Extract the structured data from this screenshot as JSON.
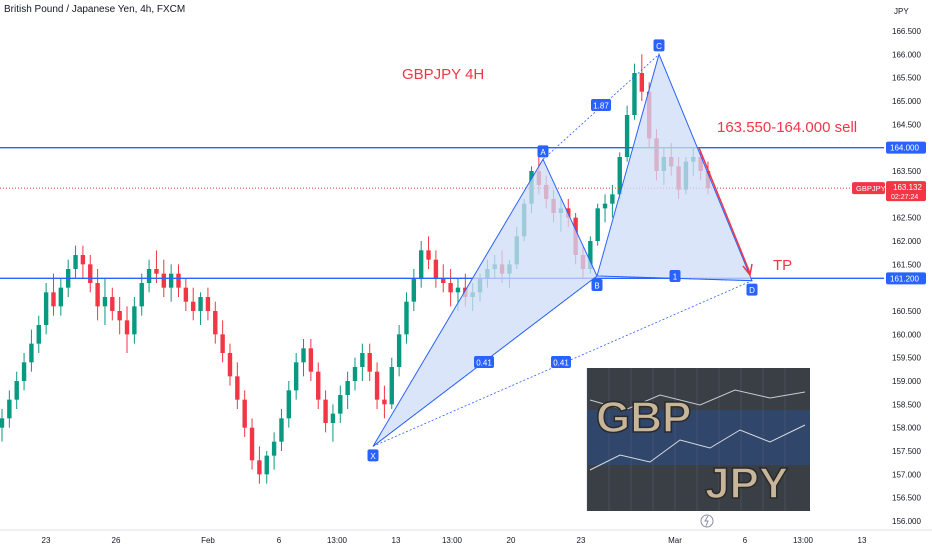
{
  "header": {
    "title": "British Pound / Japanese Yen, 4h, FXCM"
  },
  "annotations": {
    "chart_title": "GBPJPY 4H",
    "sell_zone": "163.550-164.000 sell",
    "tp": "TP",
    "pattern_points": [
      "X",
      "A",
      "B",
      "C",
      "D"
    ],
    "ratios": [
      "1.87",
      "0.41",
      "0.41",
      "1"
    ]
  },
  "price_scale": {
    "currency": "JPY",
    "last_price_tag": {
      "symbol": "GBPJPY",
      "price": "163.132",
      "countdown": "02:27:24"
    },
    "level_tags": [
      "164.000",
      "161.200"
    ]
  },
  "logo": {
    "top_text": "GBP",
    "bottom_text": "JPY"
  },
  "colors": {
    "bull": "#089981",
    "bear": "#f23645",
    "level_line": "#2962ff",
    "pattern_fill": "#cfdcf7",
    "pattern_stroke": "#2962ff",
    "annotation": "#f23645",
    "last_price": "#f23645"
  },
  "chart_data": {
    "type": "candlestick",
    "symbol": "GBPJPY",
    "timeframe": "4h",
    "ylim": [
      155.85,
      167.1
    ],
    "y_ticks": [
      156.0,
      156.5,
      157.0,
      157.5,
      158.0,
      158.5,
      159.0,
      159.5,
      160.0,
      160.5,
      161.0,
      161.5,
      162.0,
      162.5,
      163.0,
      163.5,
      164.0,
      164.5,
      165.0,
      165.5,
      166.0,
      166.5
    ],
    "x_ticks": [
      "23",
      "26",
      "Feb",
      "6",
      "13:00",
      "13",
      "13:00",
      "20",
      "23",
      "Mar",
      "6",
      "13:00",
      "13"
    ],
    "horizontal_levels": [
      164.0,
      161.2
    ],
    "last_price": 163.132,
    "pattern": {
      "name": "harmonic XABCD",
      "X": 157.6,
      "A": 163.75,
      "B": 161.25,
      "C": 166.0,
      "D": 161.15,
      "ratios": {
        "XB": "0.41",
        "AC": "1.87",
        "XD": "0.41",
        "BD": "1"
      }
    },
    "targets": {
      "sell_zone": [
        163.55,
        164.0
      ],
      "tp": 161.2
    },
    "candles": [
      [
        158.0,
        158.4,
        157.7,
        158.2
      ],
      [
        158.2,
        158.8,
        158.0,
        158.6
      ],
      [
        158.6,
        159.2,
        158.4,
        159.0
      ],
      [
        159.0,
        159.6,
        158.8,
        159.4
      ],
      [
        159.4,
        160.1,
        159.2,
        159.8
      ],
      [
        159.8,
        160.4,
        159.6,
        160.2
      ],
      [
        160.2,
        161.1,
        160.0,
        160.9
      ],
      [
        160.9,
        161.3,
        160.4,
        160.6
      ],
      [
        160.6,
        161.2,
        160.4,
        161.0
      ],
      [
        161.0,
        161.6,
        160.8,
        161.4
      ],
      [
        161.4,
        161.9,
        161.2,
        161.7
      ],
      [
        161.7,
        161.9,
        161.2,
        161.5
      ],
      [
        161.5,
        161.7,
        160.9,
        161.1
      ],
      [
        161.1,
        161.4,
        160.3,
        160.6
      ],
      [
        160.6,
        161.2,
        160.2,
        160.8
      ],
      [
        160.8,
        161.0,
        160.3,
        160.5
      ],
      [
        160.5,
        160.8,
        160.0,
        160.3
      ],
      [
        160.3,
        160.6,
        159.6,
        160.0
      ],
      [
        160.0,
        160.8,
        159.8,
        160.6
      ],
      [
        160.6,
        161.3,
        160.4,
        161.1
      ],
      [
        161.1,
        161.6,
        160.9,
        161.4
      ],
      [
        161.4,
        161.8,
        161.1,
        161.3
      ],
      [
        161.3,
        161.6,
        160.8,
        161.0
      ],
      [
        161.0,
        161.5,
        160.7,
        161.3
      ],
      [
        161.3,
        161.5,
        160.8,
        161.0
      ],
      [
        161.0,
        161.2,
        160.5,
        160.7
      ],
      [
        160.7,
        161.0,
        160.3,
        160.5
      ],
      [
        160.5,
        160.9,
        160.2,
        160.8
      ],
      [
        160.8,
        161.0,
        160.3,
        160.5
      ],
      [
        160.5,
        160.7,
        159.8,
        160.0
      ],
      [
        160.0,
        160.3,
        159.4,
        159.6
      ],
      [
        159.6,
        159.8,
        158.9,
        159.1
      ],
      [
        159.1,
        159.4,
        158.4,
        158.6
      ],
      [
        158.6,
        158.8,
        157.8,
        158.0
      ],
      [
        158.0,
        158.2,
        157.1,
        157.3
      ],
      [
        157.3,
        157.6,
        156.8,
        157.0
      ],
      [
        157.0,
        157.5,
        156.8,
        157.4
      ],
      [
        157.4,
        157.9,
        157.1,
        157.7
      ],
      [
        157.7,
        158.4,
        157.5,
        158.2
      ],
      [
        158.2,
        159.0,
        158.0,
        158.8
      ],
      [
        158.8,
        159.6,
        158.6,
        159.4
      ],
      [
        159.4,
        159.9,
        159.1,
        159.7
      ],
      [
        159.7,
        159.9,
        159.0,
        159.2
      ],
      [
        159.2,
        159.4,
        158.4,
        158.6
      ],
      [
        158.6,
        158.8,
        157.9,
        158.1
      ],
      [
        158.1,
        158.5,
        157.7,
        158.3
      ],
      [
        158.3,
        158.9,
        158.1,
        158.7
      ],
      [
        158.7,
        159.2,
        158.4,
        159.0
      ],
      [
        159.0,
        159.5,
        158.8,
        159.3
      ],
      [
        159.3,
        159.8,
        159.0,
        159.6
      ],
      [
        159.6,
        159.8,
        159.0,
        159.2
      ],
      [
        159.2,
        159.4,
        158.4,
        158.6
      ],
      [
        158.6,
        158.9,
        158.2,
        158.5
      ],
      [
        158.5,
        159.5,
        158.4,
        159.3
      ],
      [
        159.3,
        160.2,
        159.1,
        160.0
      ],
      [
        160.0,
        160.9,
        159.8,
        160.7
      ],
      [
        160.7,
        161.4,
        160.5,
        161.2
      ],
      [
        161.2,
        162.0,
        161.0,
        161.8
      ],
      [
        161.8,
        162.1,
        161.4,
        161.6
      ],
      [
        161.6,
        161.8,
        161.0,
        161.2
      ],
      [
        161.2,
        161.5,
        160.9,
        161.1
      ],
      [
        161.1,
        161.4,
        160.6,
        160.9
      ],
      [
        160.9,
        161.2,
        160.5,
        161.0
      ],
      [
        161.0,
        161.3,
        160.6,
        160.8
      ],
      [
        160.8,
        161.1,
        160.5,
        160.9
      ],
      [
        160.9,
        161.3,
        160.7,
        161.2
      ],
      [
        161.2,
        161.6,
        161.0,
        161.4
      ],
      [
        161.4,
        161.7,
        161.2,
        161.5
      ],
      [
        161.5,
        161.8,
        161.1,
        161.3
      ],
      [
        161.3,
        161.6,
        161.0,
        161.5
      ],
      [
        161.5,
        162.3,
        161.4,
        162.1
      ],
      [
        162.1,
        162.9,
        162.0,
        162.8
      ],
      [
        162.8,
        163.6,
        162.6,
        163.5
      ],
      [
        163.5,
        163.8,
        163.0,
        163.2
      ],
      [
        163.2,
        163.4,
        162.7,
        162.9
      ],
      [
        162.9,
        163.1,
        162.4,
        162.6
      ],
      [
        162.6,
        162.9,
        162.2,
        162.7
      ],
      [
        162.7,
        162.9,
        162.3,
        162.5
      ],
      [
        162.5,
        162.6,
        161.5,
        161.7
      ],
      [
        161.7,
        161.9,
        161.2,
        161.4
      ],
      [
        161.4,
        162.1,
        161.3,
        162.0
      ],
      [
        162.0,
        162.8,
        161.9,
        162.7
      ],
      [
        162.7,
        163.0,
        162.4,
        162.8
      ],
      [
        162.8,
        163.2,
        162.5,
        163.0
      ],
      [
        163.0,
        163.9,
        162.9,
        163.8
      ],
      [
        163.8,
        164.9,
        163.7,
        164.7
      ],
      [
        164.7,
        165.8,
        164.6,
        165.6
      ],
      [
        165.6,
        166.0,
        165.0,
        165.2
      ],
      [
        165.2,
        165.4,
        164.0,
        164.2
      ],
      [
        164.2,
        164.4,
        163.3,
        163.5
      ],
      [
        163.5,
        164.0,
        163.2,
        163.8
      ],
      [
        163.8,
        164.1,
        163.4,
        163.6
      ],
      [
        163.6,
        163.8,
        162.9,
        163.1
      ],
      [
        163.1,
        163.8,
        163.0,
        163.7
      ],
      [
        163.7,
        164.0,
        163.4,
        163.8
      ],
      [
        163.8,
        163.9,
        163.3,
        163.5
      ],
      [
        163.5,
        163.7,
        163.0,
        163.132
      ]
    ]
  }
}
